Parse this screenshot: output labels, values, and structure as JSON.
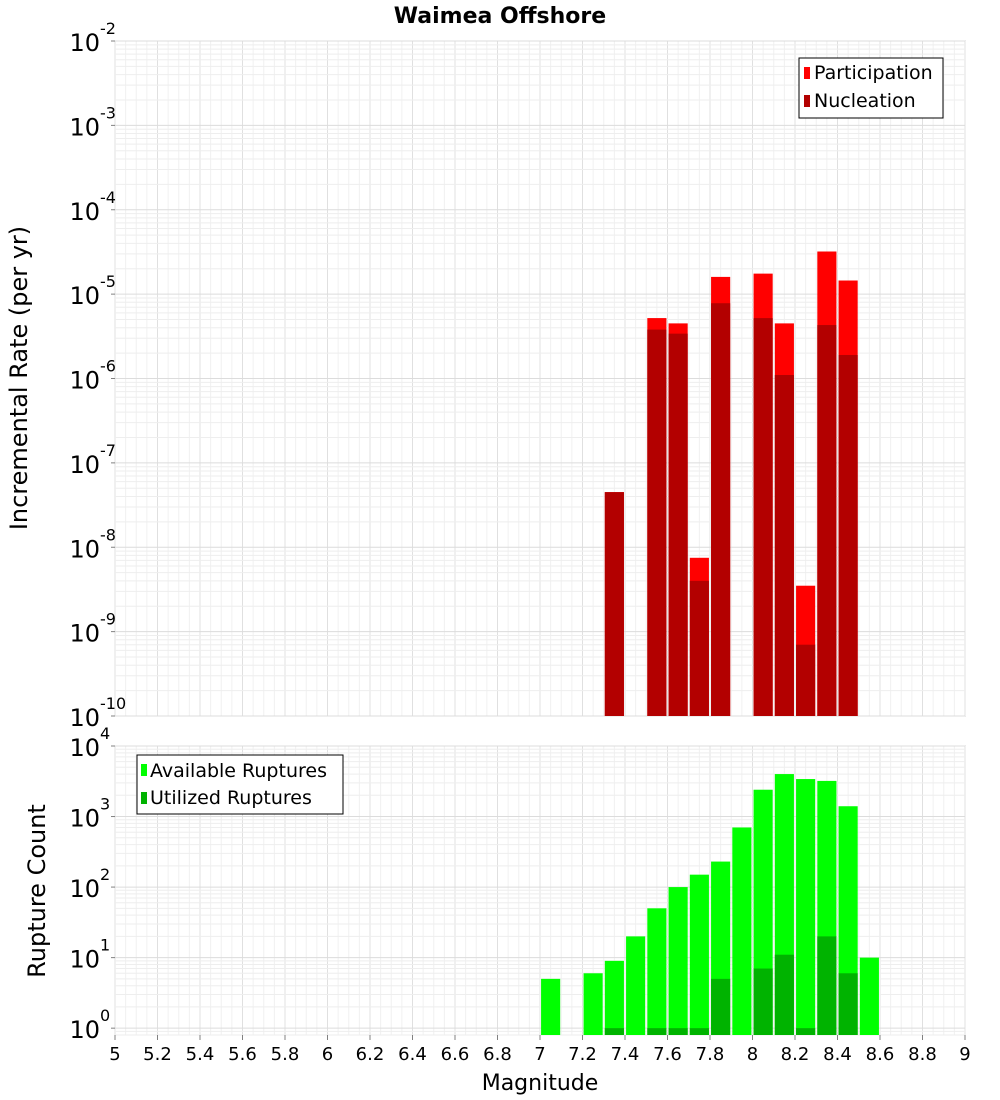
{
  "chart_data": [
    {
      "type": "bar",
      "title": "Waimea Offshore",
      "ylabel": "Incremental Rate (per yr)",
      "xlabel": "",
      "y_scale": "log",
      "ylim": [
        1e-10,
        0.01
      ],
      "xlim": [
        5,
        9
      ],
      "grid": true,
      "legend_position": "top-right",
      "y_ticks": [
        {
          "base": "10",
          "exp": "-10",
          "value": 1e-10
        },
        {
          "base": "10",
          "exp": "-9",
          "value": 1e-09
        },
        {
          "base": "10",
          "exp": "-8",
          "value": 1e-08
        },
        {
          "base": "10",
          "exp": "-7",
          "value": 1e-07
        },
        {
          "base": "10",
          "exp": "-6",
          "value": 1e-06
        },
        {
          "base": "10",
          "exp": "-5",
          "value": 1e-05
        },
        {
          "base": "10",
          "exp": "-4",
          "value": 0.0001
        },
        {
          "base": "10",
          "exp": "-3",
          "value": 0.001
        },
        {
          "base": "10",
          "exp": "-2",
          "value": 0.01
        }
      ],
      "series": [
        {
          "name": "Participation",
          "color": "#ff0000",
          "points": [
            {
              "x": 7.35,
              "y": 4.5e-08
            },
            {
              "x": 7.55,
              "y": 5.2e-06
            },
            {
              "x": 7.65,
              "y": 4.5e-06
            },
            {
              "x": 7.75,
              "y": 7.5e-09
            },
            {
              "x": 7.85,
              "y": 1.6e-05
            },
            {
              "x": 8.05,
              "y": 1.75e-05
            },
            {
              "x": 8.15,
              "y": 4.5e-06
            },
            {
              "x": 8.25,
              "y": 3.5e-09
            },
            {
              "x": 8.35,
              "y": 3.2e-05
            },
            {
              "x": 8.45,
              "y": 1.45e-05
            }
          ]
        },
        {
          "name": "Nucleation",
          "color": "#b30000",
          "points": [
            {
              "x": 7.35,
              "y": 4.5e-08
            },
            {
              "x": 7.55,
              "y": 3.8e-06
            },
            {
              "x": 7.65,
              "y": 3.4e-06
            },
            {
              "x": 7.75,
              "y": 4e-09
            },
            {
              "x": 7.85,
              "y": 7.8e-06
            },
            {
              "x": 8.05,
              "y": 5.2e-06
            },
            {
              "x": 8.15,
              "y": 1.1e-06
            },
            {
              "x": 8.25,
              "y": 7e-10
            },
            {
              "x": 8.35,
              "y": 4.3e-06
            },
            {
              "x": 8.45,
              "y": 1.9e-06
            }
          ]
        }
      ]
    },
    {
      "type": "bar",
      "title": "",
      "ylabel": "Rupture Count",
      "xlabel": "Magnitude",
      "y_scale": "log",
      "ylim": [
        0.8,
        10000
      ],
      "xlim": [
        5,
        9
      ],
      "grid": true,
      "legend_position": "top-left",
      "x_ticks": [
        "5",
        "5.2",
        "5.4",
        "5.6",
        "5.8",
        "6",
        "6.2",
        "6.4",
        "6.6",
        "6.8",
        "7",
        "7.2",
        "7.4",
        "7.6",
        "7.8",
        "8",
        "8.2",
        "8.4",
        "8.6",
        "8.8",
        "9"
      ],
      "y_ticks": [
        {
          "base": "10",
          "exp": "0",
          "value": 1
        },
        {
          "base": "10",
          "exp": "1",
          "value": 10
        },
        {
          "base": "10",
          "exp": "2",
          "value": 100
        },
        {
          "base": "10",
          "exp": "3",
          "value": 1000
        },
        {
          "base": "10",
          "exp": "4",
          "value": 10000
        }
      ],
      "series": [
        {
          "name": "Available Ruptures",
          "color": "#00ff00",
          "points": [
            {
              "x": 7.05,
              "y": 5
            },
            {
              "x": 7.25,
              "y": 6
            },
            {
              "x": 7.35,
              "y": 9
            },
            {
              "x": 7.45,
              "y": 20
            },
            {
              "x": 7.55,
              "y": 50
            },
            {
              "x": 7.65,
              "y": 100
            },
            {
              "x": 7.75,
              "y": 150
            },
            {
              "x": 7.85,
              "y": 230
            },
            {
              "x": 7.95,
              "y": 700
            },
            {
              "x": 8.05,
              "y": 2400
            },
            {
              "x": 8.15,
              "y": 4000
            },
            {
              "x": 8.25,
              "y": 3400
            },
            {
              "x": 8.35,
              "y": 3200
            },
            {
              "x": 8.45,
              "y": 1400
            },
            {
              "x": 8.55,
              "y": 10
            }
          ]
        },
        {
          "name": "Utilized Ruptures",
          "color": "#00b300",
          "points": [
            {
              "x": 7.35,
              "y": 1
            },
            {
              "x": 7.55,
              "y": 1
            },
            {
              "x": 7.65,
              "y": 1
            },
            {
              "x": 7.75,
              "y": 1
            },
            {
              "x": 7.85,
              "y": 5
            },
            {
              "x": 8.05,
              "y": 7
            },
            {
              "x": 8.15,
              "y": 11
            },
            {
              "x": 8.25,
              "y": 1
            },
            {
              "x": 8.35,
              "y": 20
            },
            {
              "x": 8.45,
              "y": 6
            }
          ]
        }
      ]
    }
  ]
}
